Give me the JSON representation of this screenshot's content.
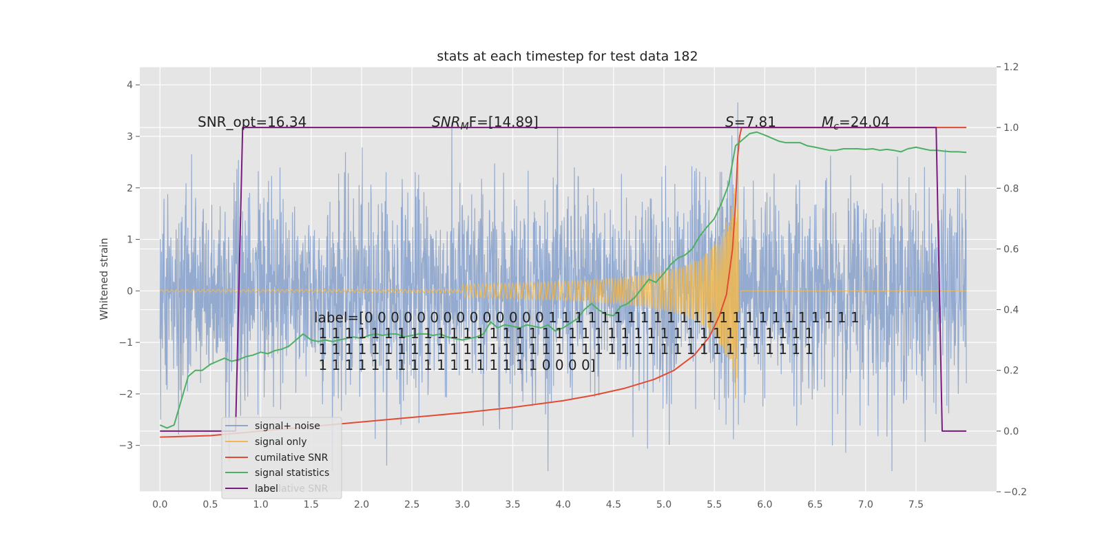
{
  "chart_data": {
    "type": "line",
    "title": "stats at each timestep for test data 182",
    "ylabel": "Whitened strain",
    "xlabel": "",
    "xlim": [
      -0.2,
      8.3
    ],
    "ylim": [
      -3.9,
      4.35
    ],
    "y2lim": [
      -0.2,
      1.2
    ],
    "grid": true,
    "x_ticks": [
      "0.0",
      "0.5",
      "1.0",
      "1.5",
      "2.0",
      "2.5",
      "3.0",
      "3.5",
      "4.0",
      "4.5",
      "5.0",
      "5.5",
      "6.0",
      "6.5",
      "7.0",
      "7.5"
    ],
    "y_ticks": [
      "4",
      "3",
      "2",
      "1",
      "0",
      "−1",
      "−2",
      "−3"
    ],
    "y2_ticks": [
      "1.2",
      "1.0",
      "0.8",
      "0.6",
      "0.4",
      "0.2",
      "0.0",
      "−0.2"
    ],
    "annotations": {
      "snr_opt": "SNR_opt=16.34",
      "snr_mf_sym": "SNR",
      "snr_mf_sub": "M",
      "snr_mf_rest": "F=[14.89]",
      "s_sym": "S",
      "s_rest": "=7.81",
      "mc_sym": "M",
      "mc_sub": "c",
      "mc_rest": "=24.04"
    },
    "label_text": [
      "label=[0 0 0 0 0 0 0 0 0 0 0 0 0 0 1 1 1 1 1 1 1 1 1 1 1 1 1 1 1 1 1 1 1 1 1 1 1 1",
      " 1 1 1 1 1 1 1 1 1 1 1 1 1 1 1 1 1 1 1 1 1 1 1 1 1 1 1 1 1 1 1 1 1 1 1 1 1 1",
      " 1 1 1 1 1 1 1 1 1 1 1 1 1 1 1 1 1 1 1 1 1 1 1 1 1 1 1 1 1 1 1 1 1 1 1 1 1 1",
      " 1 1 1 1 1 1 1 1 1 1 1 1 1 1 1 1 1 0 0 0 0]"
    ],
    "legend": {
      "placement": "lower-left",
      "entries": [
        "signal+ noise",
        "signal only",
        "cumilative SNR",
        "signal statistics",
        "label"
      ],
      "ghost_text": "cumilative SNR"
    },
    "colors": {
      "noise": "#8fa6cc",
      "signal": "#f0b850",
      "cumulative_snr": "#e24a33",
      "statistics": "#4caf62",
      "label": "#7a1a80",
      "background": "#e5e5e5",
      "grid": "#ffffff"
    },
    "series": [
      {
        "name": "signal statistics",
        "axis": "right",
        "x": [
          0.0,
          0.07,
          0.14,
          0.21,
          0.28,
          0.35,
          0.42,
          0.5,
          0.57,
          0.64,
          0.71,
          0.78,
          0.85,
          0.92,
          1.0,
          1.07,
          1.14,
          1.21,
          1.28,
          1.35,
          1.42,
          1.5,
          1.57,
          1.64,
          1.71,
          1.78,
          1.85,
          1.92,
          2.0,
          2.07,
          2.14,
          2.21,
          2.28,
          2.35,
          2.42,
          2.5,
          2.57,
          2.64,
          2.71,
          2.78,
          2.85,
          2.92,
          3.0,
          3.07,
          3.14,
          3.21,
          3.28,
          3.35,
          3.42,
          3.5,
          3.57,
          3.64,
          3.71,
          3.78,
          3.85,
          3.92,
          4.0,
          4.07,
          4.14,
          4.21,
          4.28,
          4.35,
          4.42,
          4.5,
          4.57,
          4.64,
          4.71,
          4.78,
          4.85,
          4.92,
          5.0,
          5.07,
          5.14,
          5.21,
          5.28,
          5.35,
          5.42,
          5.5,
          5.57,
          5.64,
          5.71,
          5.78,
          5.85,
          5.92,
          6.0,
          6.07,
          6.14,
          6.21,
          6.28,
          6.35,
          6.42,
          6.5,
          6.57,
          6.64,
          6.71,
          6.78,
          6.85,
          6.92,
          7.0,
          7.07,
          7.14,
          7.21,
          7.28,
          7.35,
          7.42,
          7.5,
          7.57,
          7.64,
          7.71,
          7.78,
          7.85,
          7.92,
          8.0
        ],
        "values": [
          0.02,
          0.01,
          0.02,
          0.1,
          0.18,
          0.2,
          0.2,
          0.22,
          0.23,
          0.24,
          0.23,
          0.235,
          0.245,
          0.25,
          0.26,
          0.255,
          0.265,
          0.27,
          0.28,
          0.3,
          0.32,
          0.3,
          0.295,
          0.3,
          0.295,
          0.3,
          0.305,
          0.31,
          0.305,
          0.315,
          0.32,
          0.315,
          0.32,
          0.32,
          0.31,
          0.315,
          0.32,
          0.32,
          0.315,
          0.32,
          0.31,
          0.305,
          0.3,
          0.305,
          0.31,
          0.32,
          0.36,
          0.34,
          0.35,
          0.345,
          0.34,
          0.35,
          0.345,
          0.34,
          0.35,
          0.33,
          0.34,
          0.355,
          0.37,
          0.4,
          0.42,
          0.4,
          0.385,
          0.38,
          0.41,
          0.42,
          0.44,
          0.47,
          0.5,
          0.49,
          0.52,
          0.55,
          0.57,
          0.58,
          0.6,
          0.64,
          0.67,
          0.7,
          0.75,
          0.81,
          0.94,
          0.96,
          0.98,
          0.985,
          0.975,
          0.965,
          0.955,
          0.95,
          0.95,
          0.95,
          0.94,
          0.935,
          0.93,
          0.925,
          0.925,
          0.93,
          0.93,
          0.93,
          0.928,
          0.93,
          0.925,
          0.928,
          0.925,
          0.92,
          0.93,
          0.935,
          0.93,
          0.925,
          0.925,
          0.922,
          0.92,
          0.92,
          0.918
        ]
      },
      {
        "name": "cumilative SNR",
        "axis": "right",
        "x": [
          0.0,
          0.5,
          1.0,
          1.5,
          2.0,
          2.5,
          3.0,
          3.5,
          4.0,
          4.3,
          4.6,
          4.9,
          5.1,
          5.3,
          5.45,
          5.55,
          5.62,
          5.68,
          5.71,
          5.73,
          5.75,
          5.77,
          5.8,
          6.0,
          6.5,
          7.0,
          7.5,
          8.0
        ],
        "values": [
          -0.02,
          -0.015,
          0.0,
          0.015,
          0.03,
          0.045,
          0.06,
          0.078,
          0.1,
          0.118,
          0.14,
          0.17,
          0.2,
          0.25,
          0.31,
          0.38,
          0.45,
          0.6,
          0.75,
          0.9,
          0.97,
          1.0,
          1.0,
          1.0,
          1.0,
          1.0,
          1.0,
          1.0
        ]
      },
      {
        "name": "label",
        "axis": "right",
        "x": [
          0.0,
          0.75,
          0.82,
          7.7,
          7.76,
          8.0
        ],
        "values": [
          0.0,
          0.0,
          1.0,
          1.0,
          0.0,
          0.0
        ]
      },
      {
        "name": "signal only",
        "axis": "left",
        "description_of_shape": "chirp: ~0 until 3.0, growing oscillation to peak near x=5.74",
        "peak_x": 5.74,
        "peak_amplitude": 3.3
      },
      {
        "name": "signal+ noise",
        "axis": "left",
        "x_range": [
          0.0,
          8.0
        ],
        "typical_amplitude": 1.0,
        "max_value": 4.0,
        "min_value": -3.5
      }
    ]
  }
}
